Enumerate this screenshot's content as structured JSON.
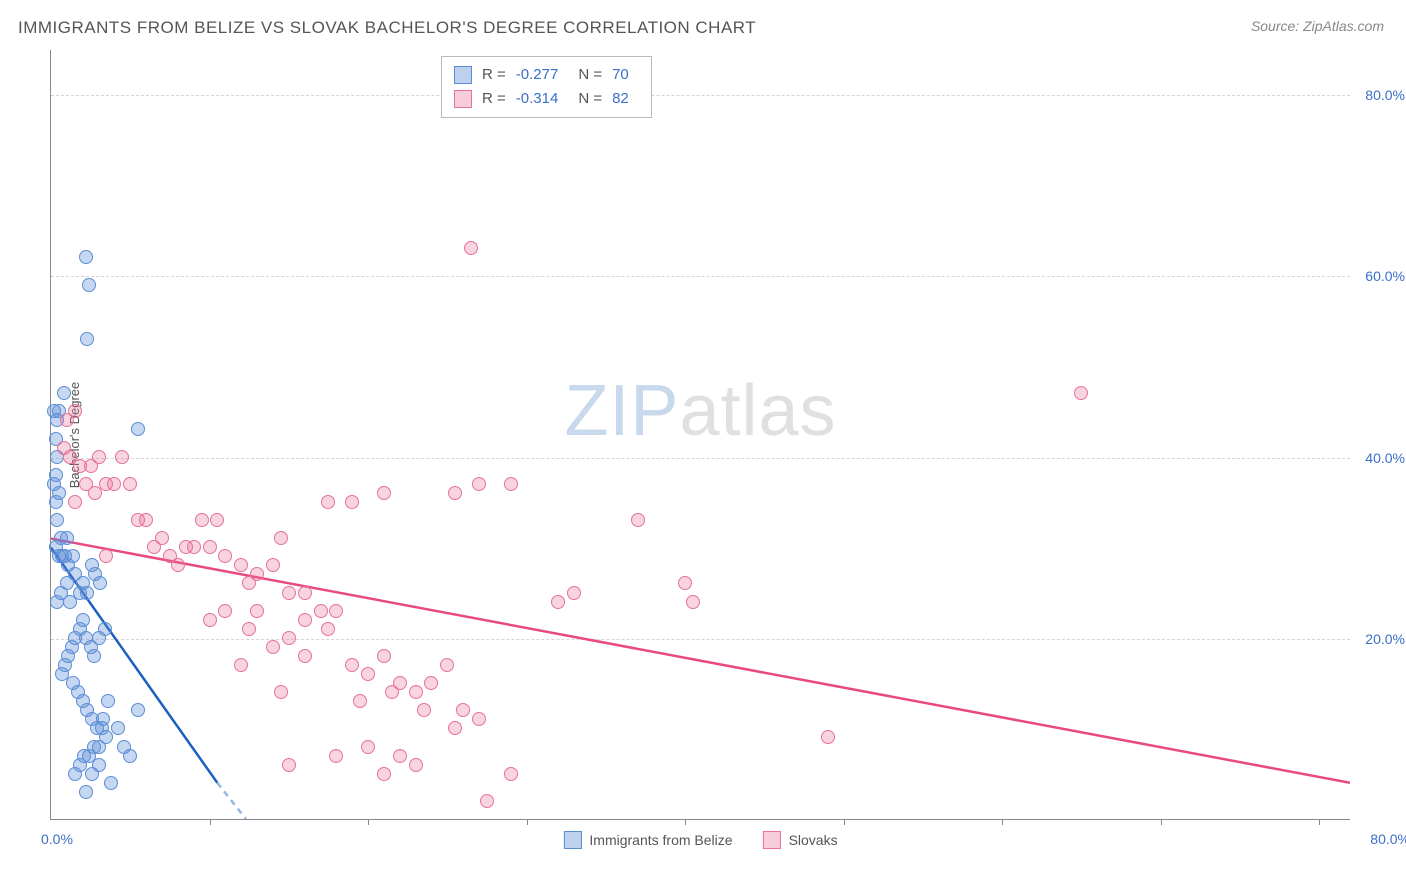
{
  "title": "IMMIGRANTS FROM BELIZE VS SLOVAK BACHELOR'S DEGREE CORRELATION CHART",
  "source": "Source: ZipAtlas.com",
  "watermark_zip": "ZIP",
  "watermark_atlas": "atlas",
  "ylabel": "Bachelor's Degree",
  "axes": {
    "xlim": [
      0,
      82
    ],
    "ylim": [
      0,
      85
    ],
    "xlabel_min": "0.0%",
    "xlabel_max": "80.0%",
    "xtick_positions": [
      10,
      20,
      30,
      40,
      50,
      60,
      70,
      80
    ],
    "yticks": [
      {
        "v": 20,
        "label": "20.0%"
      },
      {
        "v": 40,
        "label": "40.0%"
      },
      {
        "v": 60,
        "label": "60.0%"
      },
      {
        "v": 80,
        "label": "80.0%"
      }
    ]
  },
  "colors": {
    "blue_stroke": "#5b8dd6",
    "blue_fill": "rgba(91,141,214,0.35)",
    "pink_stroke": "#e87197",
    "pink_fill": "rgba(232,113,151,0.3)",
    "blue_line": "#1b5fc1",
    "pink_line": "#e84a7e",
    "grid": "#d5d5d5",
    "axis": "#888888",
    "text_dim": "#555555",
    "tick_text": "#3b6fc9"
  },
  "statbox": {
    "rows": [
      {
        "swatch": "blue",
        "R_label": "R =",
        "R": "-0.277",
        "N_label": "N =",
        "N": "70"
      },
      {
        "swatch": "pink",
        "R_label": "R =",
        "R": "-0.314",
        "N_label": "N =",
        "N": "82"
      }
    ]
  },
  "legend": {
    "series1": "Immigrants from Belize",
    "series2": "Slovaks"
  },
  "trend_lines": {
    "blue_solid": {
      "x1": 0,
      "y1": 30,
      "x2": 10.5,
      "y2": 4
    },
    "blue_dashed": {
      "x1": 10.5,
      "y1": 4,
      "x2": 12.3,
      "y2": 0
    },
    "pink": {
      "x1": 0,
      "y1": 31,
      "x2": 82,
      "y2": 4
    }
  },
  "series_blue": [
    [
      0.3,
      38
    ],
    [
      0.4,
      40
    ],
    [
      0.2,
      37
    ],
    [
      0.5,
      36
    ],
    [
      0.3,
      42
    ],
    [
      0.4,
      44
    ],
    [
      0.2,
      45
    ],
    [
      0.5,
      45
    ],
    [
      2.2,
      62
    ],
    [
      2.4,
      59
    ],
    [
      2.3,
      53
    ],
    [
      0.8,
      47
    ],
    [
      0.3,
      35
    ],
    [
      0.4,
      33
    ],
    [
      0.6,
      31
    ],
    [
      0.3,
      30
    ],
    [
      0.5,
      29
    ],
    [
      0.7,
      29
    ],
    [
      0.9,
      29
    ],
    [
      1.1,
      28
    ],
    [
      1.4,
      29
    ],
    [
      1.0,
      31
    ],
    [
      5.5,
      43
    ],
    [
      1.5,
      27
    ],
    [
      1.0,
      26
    ],
    [
      0.6,
      25
    ],
    [
      0.4,
      24
    ],
    [
      1.2,
      24
    ],
    [
      1.8,
      25
    ],
    [
      2.0,
      26
    ],
    [
      2.3,
      25
    ],
    [
      2.6,
      28
    ],
    [
      2.8,
      27
    ],
    [
      3.1,
      26
    ],
    [
      3.4,
      21
    ],
    [
      3.0,
      20
    ],
    [
      2.7,
      18
    ],
    [
      2.5,
      19
    ],
    [
      2.2,
      20
    ],
    [
      2.0,
      22
    ],
    [
      1.8,
      21
    ],
    [
      1.5,
      20
    ],
    [
      1.3,
      19
    ],
    [
      1.1,
      18
    ],
    [
      0.9,
      17
    ],
    [
      0.7,
      16
    ],
    [
      1.4,
      15
    ],
    [
      1.7,
      14
    ],
    [
      2.0,
      13
    ],
    [
      2.3,
      12
    ],
    [
      2.6,
      11
    ],
    [
      2.9,
      10
    ],
    [
      3.2,
      10
    ],
    [
      3.5,
      9
    ],
    [
      3.0,
      8
    ],
    [
      2.7,
      8
    ],
    [
      2.4,
      7
    ],
    [
      2.1,
      7
    ],
    [
      1.8,
      6
    ],
    [
      1.5,
      5
    ],
    [
      2.6,
      5
    ],
    [
      3.0,
      6
    ],
    [
      3.3,
      11
    ],
    [
      3.6,
      13
    ],
    [
      4.2,
      10
    ],
    [
      4.6,
      8
    ],
    [
      5.0,
      7
    ],
    [
      5.5,
      12
    ],
    [
      2.2,
      3
    ],
    [
      3.8,
      4
    ]
  ],
  "series_pink": [
    [
      0.8,
      41
    ],
    [
      1.0,
      44
    ],
    [
      1.5,
      45
    ],
    [
      1.2,
      40
    ],
    [
      1.8,
      39
    ],
    [
      2.5,
      39
    ],
    [
      3.0,
      40
    ],
    [
      3.5,
      37
    ],
    [
      4.0,
      37
    ],
    [
      4.5,
      40
    ],
    [
      2.2,
      37
    ],
    [
      2.8,
      36
    ],
    [
      1.5,
      35
    ],
    [
      5.0,
      37
    ],
    [
      5.5,
      33
    ],
    [
      6.0,
      33
    ],
    [
      6.5,
      30
    ],
    [
      7.0,
      31
    ],
    [
      7.5,
      29
    ],
    [
      8.0,
      28
    ],
    [
      8.5,
      30
    ],
    [
      9.0,
      30
    ],
    [
      10.0,
      30
    ],
    [
      9.5,
      33
    ],
    [
      10.5,
      33
    ],
    [
      11.0,
      29
    ],
    [
      12.0,
      28
    ],
    [
      12.5,
      26
    ],
    [
      13.0,
      27
    ],
    [
      14.0,
      28
    ],
    [
      15.0,
      25
    ],
    [
      16.0,
      25
    ],
    [
      17.0,
      23
    ],
    [
      14.5,
      31
    ],
    [
      17.5,
      35
    ],
    [
      19.0,
      35
    ],
    [
      21.0,
      36
    ],
    [
      25.5,
      36
    ],
    [
      26.5,
      63
    ],
    [
      27.0,
      37
    ],
    [
      29.0,
      37
    ],
    [
      10.0,
      22
    ],
    [
      11.0,
      23
    ],
    [
      13.0,
      23
    ],
    [
      16.0,
      22
    ],
    [
      12.5,
      21
    ],
    [
      17.5,
      21
    ],
    [
      18.0,
      23
    ],
    [
      14.0,
      19
    ],
    [
      15.0,
      20
    ],
    [
      16.0,
      18
    ],
    [
      12.0,
      17
    ],
    [
      14.5,
      14
    ],
    [
      19.0,
      17
    ],
    [
      20.0,
      16
    ],
    [
      21.0,
      18
    ],
    [
      22.0,
      15
    ],
    [
      23.0,
      14
    ],
    [
      24.0,
      15
    ],
    [
      25.0,
      17
    ],
    [
      26.0,
      12
    ],
    [
      19.5,
      13
    ],
    [
      21.5,
      14
    ],
    [
      23.5,
      12
    ],
    [
      25.5,
      10
    ],
    [
      27.0,
      11
    ],
    [
      18.0,
      7
    ],
    [
      20.0,
      8
    ],
    [
      22.0,
      7
    ],
    [
      15.0,
      6
    ],
    [
      21.0,
      5
    ],
    [
      23.0,
      6
    ],
    [
      29.0,
      5
    ],
    [
      27.5,
      2
    ],
    [
      32.0,
      24
    ],
    [
      33.0,
      25
    ],
    [
      37.0,
      33
    ],
    [
      40.0,
      26
    ],
    [
      40.5,
      24
    ],
    [
      49.0,
      9
    ],
    [
      65.0,
      47
    ],
    [
      3.5,
      29
    ]
  ]
}
